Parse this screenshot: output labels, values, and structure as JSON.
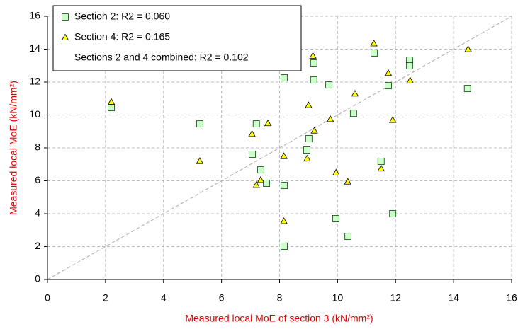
{
  "chart_data": {
    "type": "scatter",
    "x_label": "Measured local MoE of section 3 (kN/mm²)",
    "y_label": "Measured local MoE (kN/mm²)",
    "xlim": [
      0,
      16
    ],
    "xticks": [
      0,
      2,
      4,
      6,
      8,
      10,
      12,
      14,
      16
    ],
    "ylim": [
      0,
      16
    ],
    "yticks": [
      0,
      2,
      4,
      6,
      8,
      10,
      12,
      14,
      16
    ],
    "grid": true,
    "identity_line": true,
    "legend": "upper left",
    "legend_note": "Sections 2 and 4 combined: R2 = 0.102",
    "series": [
      {
        "name": "Section 2: R2 = 0.060",
        "marker": "square",
        "color": "#ccffcc",
        "x": [
          2.2,
          5.25,
          7.2,
          7.06,
          7.35,
          7.55,
          8.16,
          8.16,
          8.16,
          8.94,
          9.01,
          9.18,
          9.18,
          9.7,
          9.94,
          10.36,
          10.55,
          11.26,
          11.5,
          11.75,
          11.9,
          12.48,
          12.48,
          14.48
        ],
        "values": [
          10.45,
          9.46,
          9.46,
          7.61,
          6.67,
          5.85,
          12.26,
          5.72,
          2.02,
          7.87,
          8.56,
          13.16,
          12.13,
          11.83,
          3.7,
          2.62,
          10.1,
          13.76,
          7.18,
          11.78,
          4.0,
          13.33,
          12.99,
          11.61
        ]
      },
      {
        "name": "Section 4: R2 = 0.165",
        "marker": "triangle",
        "color": "#ffff00",
        "x": [
          2.2,
          5.25,
          7.05,
          7.2,
          7.35,
          7.6,
          8.15,
          8.15,
          8.95,
          9.0,
          9.15,
          9.2,
          9.75,
          9.95,
          10.35,
          10.6,
          11.25,
          11.5,
          11.75,
          11.9,
          12.5,
          14.5
        ],
        "values": [
          10.8,
          7.2,
          8.85,
          5.75,
          6.05,
          9.5,
          7.5,
          3.55,
          7.35,
          10.6,
          13.6,
          9.05,
          9.75,
          6.5,
          5.95,
          11.3,
          14.35,
          6.75,
          12.55,
          9.7,
          12.1,
          14.0
        ]
      }
    ]
  }
}
